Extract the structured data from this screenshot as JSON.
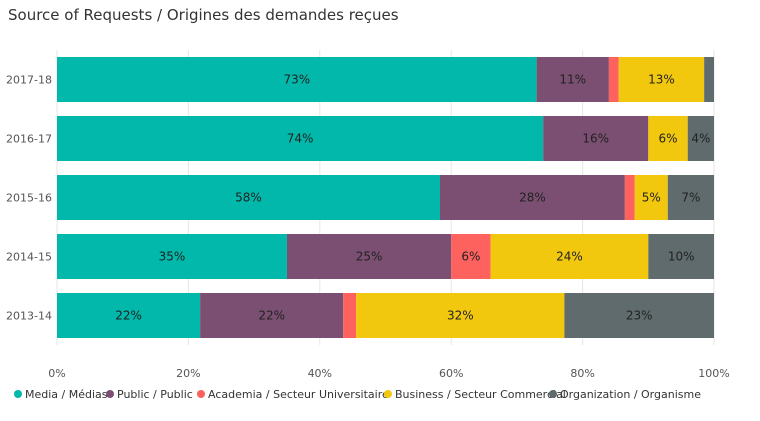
{
  "chart_data": {
    "type": "bar",
    "orientation": "horizontal",
    "stacked": true,
    "title": "Source of Requests / Origines des demandes reçues",
    "categories": [
      "2017-18",
      "2016-17",
      "2015-16",
      "2014-15",
      "2013-14"
    ],
    "series": [
      {
        "name": "Media / Médias",
        "color": "#01B8AA",
        "values": [
          73,
          74,
          58,
          35,
          22
        ],
        "labels": [
          "73%",
          "74%",
          "58%",
          "35%",
          "22%"
        ]
      },
      {
        "name": "Public / Public",
        "color": "#7B4F72",
        "values": [
          11,
          16,
          28,
          25,
          22
        ],
        "labels": [
          "11%",
          "16%",
          "28%",
          "25%",
          "22%"
        ]
      },
      {
        "name": "Academia / Secteur Universitaire",
        "color": "#FD625E",
        "values": [
          1.5,
          0,
          1.5,
          6,
          2
        ],
        "labels": [
          "",
          "",
          "",
          "6%",
          ""
        ]
      },
      {
        "name": "Business / Secteur Commercial",
        "color": "#F2C80F",
        "values": [
          13,
          6,
          5,
          24,
          32
        ],
        "labels": [
          "13%",
          "6%",
          "5%",
          "24%",
          "32%"
        ]
      },
      {
        "name": "Organization / Organisme",
        "color": "#5F6B6D",
        "values": [
          1.5,
          4,
          7,
          10,
          23
        ],
        "labels": [
          "",
          "4%",
          "7%",
          "10%",
          "23%"
        ]
      }
    ],
    "xlim": [
      0,
      100
    ],
    "xticks": [
      "0%",
      "20%",
      "40%",
      "60%",
      "80%",
      "100%"
    ],
    "grid": true,
    "legend_position": "bottom"
  }
}
